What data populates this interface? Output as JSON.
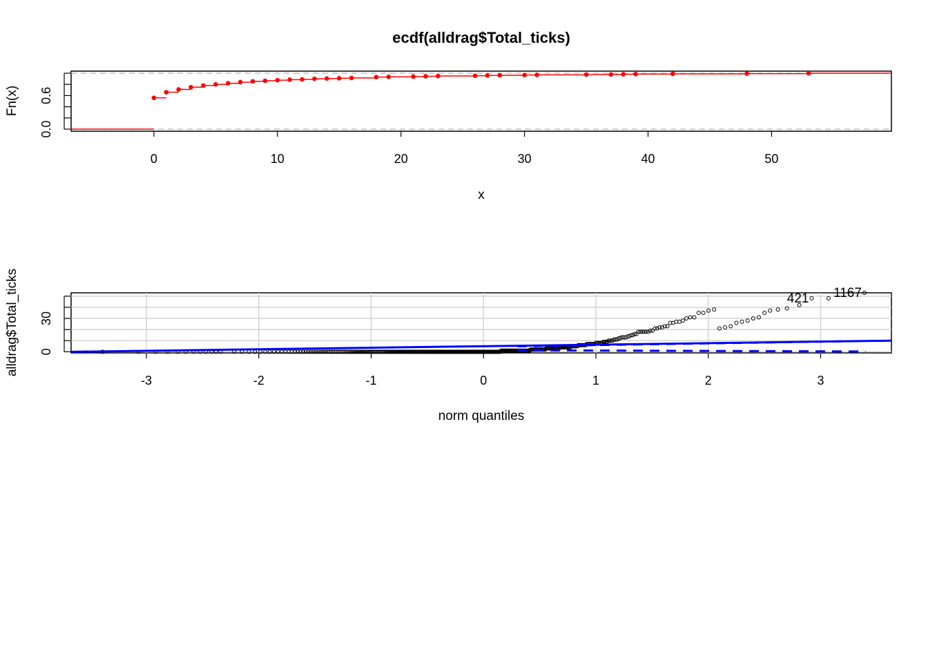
{
  "chart_data": [
    {
      "type": "step",
      "title": "ecdf(alldrag$Total_ticks)",
      "xlabel": "x",
      "ylabel": "Fn(x)",
      "xlim": [
        -6.7,
        59.7
      ],
      "ylim": [
        0,
        1
      ],
      "x_ticks": [
        "0",
        "10",
        "20",
        "30",
        "40",
        "50"
      ],
      "y_ticks": [
        "0.0",
        "0.6"
      ],
      "reference_lines": [
        0,
        1
      ],
      "color": "#ff0000",
      "points": [
        {
          "x": 0,
          "y": 0.56
        },
        {
          "x": 1,
          "y": 0.66
        },
        {
          "x": 2,
          "y": 0.71
        },
        {
          "x": 3,
          "y": 0.75
        },
        {
          "x": 4,
          "y": 0.78
        },
        {
          "x": 5,
          "y": 0.8
        },
        {
          "x": 6,
          "y": 0.82
        },
        {
          "x": 7,
          "y": 0.84
        },
        {
          "x": 8,
          "y": 0.855
        },
        {
          "x": 9,
          "y": 0.865
        },
        {
          "x": 10,
          "y": 0.875
        },
        {
          "x": 11,
          "y": 0.885
        },
        {
          "x": 12,
          "y": 0.89
        },
        {
          "x": 13,
          "y": 0.9
        },
        {
          "x": 14,
          "y": 0.905
        },
        {
          "x": 15,
          "y": 0.91
        },
        {
          "x": 16,
          "y": 0.915
        },
        {
          "x": 18,
          "y": 0.93
        },
        {
          "x": 19,
          "y": 0.935
        },
        {
          "x": 21,
          "y": 0.94
        },
        {
          "x": 22,
          "y": 0.945
        },
        {
          "x": 23,
          "y": 0.95
        },
        {
          "x": 26,
          "y": 0.955
        },
        {
          "x": 27,
          "y": 0.96
        },
        {
          "x": 28,
          "y": 0.963
        },
        {
          "x": 30,
          "y": 0.967
        },
        {
          "x": 31,
          "y": 0.97
        },
        {
          "x": 35,
          "y": 0.975
        },
        {
          "x": 37,
          "y": 0.978
        },
        {
          "x": 38,
          "y": 0.981
        },
        {
          "x": 39,
          "y": 0.984
        },
        {
          "x": 42,
          "y": 0.988
        },
        {
          "x": 48,
          "y": 0.993
        },
        {
          "x": 53,
          "y": 1.0
        }
      ]
    },
    {
      "type": "scatter",
      "title": "",
      "xlabel": "norm quantiles",
      "ylabel": "alldrag$Total_ticks",
      "xlim": [
        -3.67,
        3.63
      ],
      "ylim": [
        -1,
        53
      ],
      "x_ticks": [
        "-3",
        "-2",
        "-1",
        "0",
        "1",
        "2",
        "3"
      ],
      "y_ticks": [
        "0",
        "30"
      ],
      "grid": true,
      "annotations": [
        {
          "text": "421",
          "x": 2.92,
          "y": 48
        },
        {
          "text": "1167",
          "x": 3.39,
          "y": 53
        }
      ],
      "reference_line": {
        "color": "#0000ff",
        "x": [
          -3.67,
          3.63
        ],
        "y": [
          0,
          10
        ]
      },
      "notable_points": [
        {
          "x": -3.39,
          "y": 0
        },
        {
          "x": -3.07,
          "y": 0
        },
        {
          "x": -2.92,
          "y": 0
        },
        {
          "x": -2.81,
          "y": 0
        },
        {
          "x": -2.72,
          "y": 0
        },
        {
          "x": -2.65,
          "y": 0
        },
        {
          "x": -2.58,
          "y": 0
        },
        {
          "x": -2.52,
          "y": 0
        },
        {
          "x": -2.47,
          "y": 0
        },
        {
          "x": -2.42,
          "y": 0
        },
        {
          "x": -2.38,
          "y": 0
        },
        {
          "x": -2.34,
          "y": 0
        },
        {
          "x": 2.1,
          "y": 21
        },
        {
          "x": 2.15,
          "y": 22
        },
        {
          "x": 2.2,
          "y": 23
        },
        {
          "x": 2.25,
          "y": 26
        },
        {
          "x": 2.3,
          "y": 27
        },
        {
          "x": 2.35,
          "y": 28
        },
        {
          "x": 2.4,
          "y": 30
        },
        {
          "x": 2.45,
          "y": 31
        },
        {
          "x": 2.5,
          "y": 35
        },
        {
          "x": 2.55,
          "y": 37
        },
        {
          "x": 2.62,
          "y": 38
        },
        {
          "x": 2.7,
          "y": 39
        },
        {
          "x": 2.81,
          "y": 42
        },
        {
          "x": 2.92,
          "y": 48
        },
        {
          "x": 3.07,
          "y": 48
        },
        {
          "x": 3.39,
          "y": 53
        }
      ]
    }
  ]
}
